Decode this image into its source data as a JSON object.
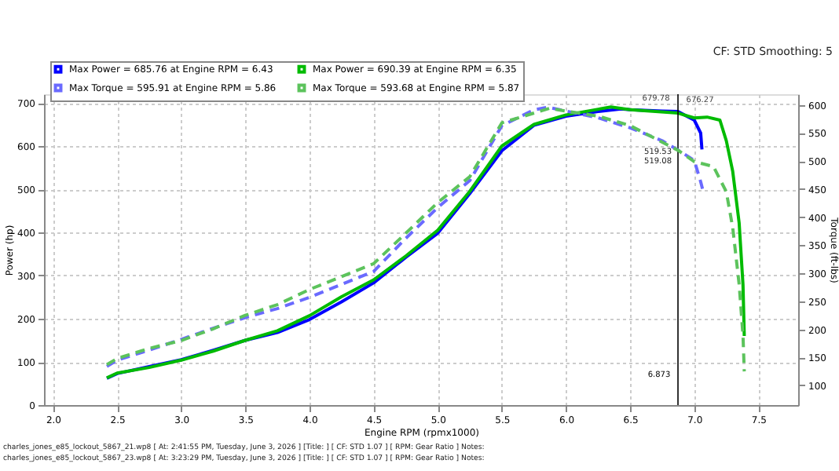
{
  "chart_data": {
    "type": "line",
    "xlabel": "Engine RPM (rpmx1000)",
    "ylabel": "Power (hp)",
    "y2label": "Torque (ft-lbs)",
    "xlim": [
      1.93,
      7.81
    ],
    "xticks": [
      {
        "value": 2,
        "label": "2.0"
      },
      2.5,
      {
        "value": 3,
        "label": "3.0"
      },
      3.5,
      {
        "value": 4,
        "label": "4.0"
      },
      4.5,
      {
        "value": 5,
        "label": "5.0"
      },
      5.5,
      {
        "value": 6,
        "label": "6.0"
      },
      6.5,
      {
        "value": 7,
        "label": "7.0"
      },
      7.5
    ],
    "ylim": [
      0,
      720
    ],
    "yticks": [
      0,
      100,
      200,
      300,
      400,
      500,
      600,
      700
    ],
    "y2lim": [
      65,
      619
    ],
    "y2ticks": [
      100,
      150,
      200,
      250,
      300,
      350,
      400,
      450,
      500,
      550,
      600
    ],
    "grid": true,
    "legend": "top left",
    "series": [
      {
        "name": "Max Power = 685.76 at Engine RPM = 6.43",
        "color": "#0000ff",
        "line_style": "solid",
        "x": [
          2.42,
          2.5,
          2.75,
          3.0,
          3.25,
          3.5,
          3.75,
          4.0,
          4.25,
          4.5,
          4.75,
          5.0,
          5.25,
          5.5,
          5.75,
          6.0,
          6.25,
          6.43,
          6.5,
          6.75,
          6.873,
          7.0,
          7.05,
          7.06
        ],
        "values": [
          62,
          73,
          89,
          105,
          127,
          150,
          168,
          198,
          239,
          283,
          342,
          398,
          490,
          589,
          648,
          669,
          680,
          685.76,
          684,
          681,
          679.78,
          660,
          630,
          592
        ]
      },
      {
        "name": "Max Torque = 595.91 at Engine RPM = 5.86",
        "color": "#6a6aff",
        "line_style": "dashed",
        "axis": "y2",
        "x": [
          2.42,
          2.5,
          2.75,
          3.0,
          3.25,
          3.5,
          3.75,
          4.0,
          4.25,
          4.5,
          4.75,
          5.0,
          5.25,
          5.5,
          5.75,
          5.86,
          6.0,
          6.25,
          6.5,
          6.75,
          6.873,
          7.0,
          7.05,
          7.07
        ],
        "values": [
          134,
          145,
          163,
          182,
          202,
          221,
          237,
          257,
          280,
          303,
          362,
          417,
          465,
          563,
          591,
          595.91,
          589,
          577,
          559,
          536,
          519.53,
          501,
          463,
          445
        ]
      },
      {
        "name": "Max Power = 690.39 at Engine RPM = 6.35",
        "color": "#00bb00",
        "line_style": "solid",
        "x": [
          2.42,
          2.5,
          2.75,
          3.0,
          3.25,
          3.5,
          3.75,
          4.0,
          4.25,
          4.5,
          4.75,
          5.0,
          5.25,
          5.5,
          5.75,
          6.0,
          6.35,
          6.5,
          6.873,
          7.0,
          7.1,
          7.2,
          7.25,
          7.3,
          7.35,
          7.38,
          7.39
        ],
        "values": [
          63,
          74,
          87,
          104,
          125,
          150,
          172,
          207,
          251,
          290,
          345,
          405,
          495,
          600,
          650,
          672,
          690.39,
          684,
          676.27,
          665,
          667,
          660,
          612,
          541,
          422,
          279,
          160
        ]
      },
      {
        "name": "Max Torque = 593.68 at Engine RPM = 5.87",
        "color": "#5cc35c",
        "line_style": "dashed",
        "axis": "y2",
        "x": [
          2.42,
          2.5,
          2.75,
          3.0,
          3.25,
          3.5,
          3.75,
          4.0,
          4.25,
          4.5,
          4.75,
          5.0,
          5.25,
          5.5,
          5.87,
          6.25,
          6.5,
          6.873,
          7.0,
          7.15,
          7.25,
          7.3,
          7.35,
          7.38,
          7.39
        ],
        "values": [
          137,
          148,
          166,
          180,
          201,
          225,
          244,
          271,
          294,
          317,
          371,
          426,
          472,
          568,
          593.68,
          580,
          563,
          519.08,
          499,
          490,
          445,
          381,
          280,
          189,
          125
        ]
      }
    ],
    "ref_lines": [
      {
        "axis": "x",
        "value": 6.873,
        "label": "6.873",
        "color": "#000000"
      }
    ],
    "annotations": [
      {
        "text": "679.78",
        "x": 6.873,
        "y": 679.78
      },
      {
        "text": "676.27",
        "x": 6.873,
        "y": 676.27
      },
      "CF: STD Smoothing: 5",
      "519.53",
      "519.08",
      "charles_jones_e85_lockout_5867_21.wp8 [ At: 2:41:55 PM, Tuesday, June 3, 2026 ] [Title: ] [ CF: STD 1.07 ] [ RPM: Gear Ratio ] Notes:",
      "charles_jones_e85_lockout_5867_23.wp8 [ At: 3:23:29 PM, Tuesday, June 3, 2026 ] [Title: ] [ CF: STD 1.07 ] [ RPM: Gear Ratio ] Notes:"
    ]
  }
}
